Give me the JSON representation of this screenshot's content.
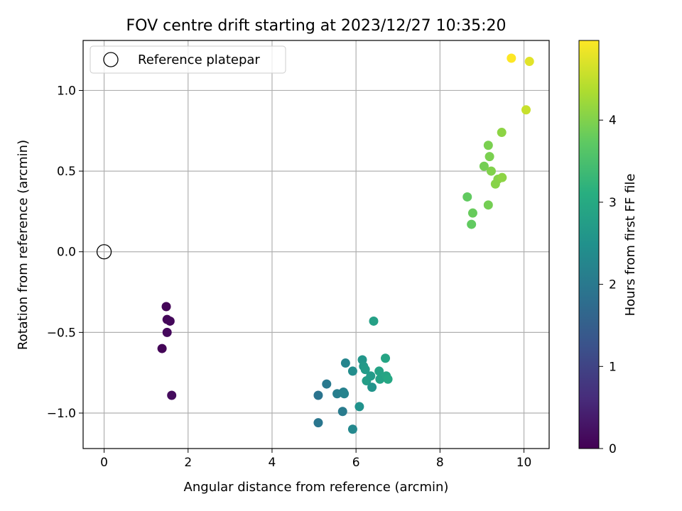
{
  "chart_data": {
    "type": "scatter",
    "title": "FOV centre drift starting at 2023/12/27 10:35:20",
    "xlabel": "Angular distance from reference (arcmin)",
    "ylabel": "Rotation from reference (arcmin)",
    "xlim": [
      -0.5,
      10.6
    ],
    "ylim": [
      -1.22,
      1.31
    ],
    "x_ticks": [
      0,
      2,
      4,
      6,
      8,
      10
    ],
    "x_tick_labels": [
      "0",
      "2",
      "4",
      "6",
      "8",
      "10"
    ],
    "y_ticks": [
      -1.0,
      -0.5,
      0.0,
      0.5,
      1.0
    ],
    "y_tick_labels": [
      "−1.0",
      "−0.5",
      "0.0",
      "0.5",
      "1.0"
    ],
    "grid": true,
    "legend": {
      "placement": "upper-left",
      "entries": [
        "Reference platepar"
      ]
    },
    "reference_point": {
      "x": 0.0,
      "y": 0.0,
      "marker": "open-circle",
      "color": "#000000"
    },
    "colorbar": {
      "label": "Hours from first FF file",
      "range": [
        0,
        4.97
      ],
      "ticks": [
        0,
        1,
        2,
        3,
        4
      ],
      "tick_labels": [
        "0",
        "1",
        "2",
        "3",
        "4"
      ],
      "colormap": "viridis"
    },
    "points": [
      {
        "x": 1.48,
        "y": -0.34,
        "c": 0.05
      },
      {
        "x": 1.5,
        "y": -0.42,
        "c": 0.08
      },
      {
        "x": 1.57,
        "y": -0.43,
        "c": 0.1
      },
      {
        "x": 1.5,
        "y": -0.5,
        "c": 0.12
      },
      {
        "x": 1.38,
        "y": -0.6,
        "c": 0.05
      },
      {
        "x": 1.61,
        "y": -0.89,
        "c": 0.15
      },
      {
        "x": 5.1,
        "y": -0.89,
        "c": 1.9
      },
      {
        "x": 5.1,
        "y": -1.06,
        "c": 1.95
      },
      {
        "x": 5.3,
        "y": -0.82,
        "c": 2.0
      },
      {
        "x": 5.55,
        "y": -0.88,
        "c": 2.1
      },
      {
        "x": 5.7,
        "y": -0.87,
        "c": 2.15
      },
      {
        "x": 5.72,
        "y": -0.88,
        "c": 2.2
      },
      {
        "x": 5.68,
        "y": -0.99,
        "c": 2.05
      },
      {
        "x": 5.75,
        "y": -0.69,
        "c": 2.25
      },
      {
        "x": 5.92,
        "y": -0.74,
        "c": 2.4
      },
      {
        "x": 5.92,
        "y": -1.1,
        "c": 2.3
      },
      {
        "x": 6.08,
        "y": -0.96,
        "c": 2.5
      },
      {
        "x": 6.15,
        "y": -0.67,
        "c": 2.6
      },
      {
        "x": 6.18,
        "y": -0.71,
        "c": 2.65
      },
      {
        "x": 6.22,
        "y": -0.73,
        "c": 2.7
      },
      {
        "x": 6.25,
        "y": -0.8,
        "c": 2.75
      },
      {
        "x": 6.35,
        "y": -0.77,
        "c": 2.7
      },
      {
        "x": 6.38,
        "y": -0.84,
        "c": 2.55
      },
      {
        "x": 6.42,
        "y": -0.43,
        "c": 2.8
      },
      {
        "x": 6.55,
        "y": -0.74,
        "c": 2.85
      },
      {
        "x": 6.57,
        "y": -0.79,
        "c": 2.85
      },
      {
        "x": 6.7,
        "y": -0.66,
        "c": 2.9
      },
      {
        "x": 6.72,
        "y": -0.77,
        "c": 2.9
      },
      {
        "x": 6.76,
        "y": -0.79,
        "c": 2.95
      },
      {
        "x": 8.65,
        "y": 0.34,
        "c": 3.75
      },
      {
        "x": 8.78,
        "y": 0.24,
        "c": 3.8
      },
      {
        "x": 8.75,
        "y": 0.17,
        "c": 3.75
      },
      {
        "x": 9.05,
        "y": 0.53,
        "c": 3.9
      },
      {
        "x": 9.15,
        "y": 0.66,
        "c": 3.95
      },
      {
        "x": 9.15,
        "y": 0.29,
        "c": 3.9
      },
      {
        "x": 9.18,
        "y": 0.59,
        "c": 3.95
      },
      {
        "x": 9.22,
        "y": 0.5,
        "c": 4.0
      },
      {
        "x": 9.32,
        "y": 0.42,
        "c": 4.05
      },
      {
        "x": 9.38,
        "y": 0.45,
        "c": 4.05
      },
      {
        "x": 9.47,
        "y": 0.74,
        "c": 4.1
      },
      {
        "x": 9.48,
        "y": 0.46,
        "c": 4.1
      },
      {
        "x": 10.05,
        "y": 0.88,
        "c": 4.55
      },
      {
        "x": 9.7,
        "y": 1.2,
        "c": 4.97
      },
      {
        "x": 10.13,
        "y": 1.18,
        "c": 4.75
      }
    ]
  }
}
